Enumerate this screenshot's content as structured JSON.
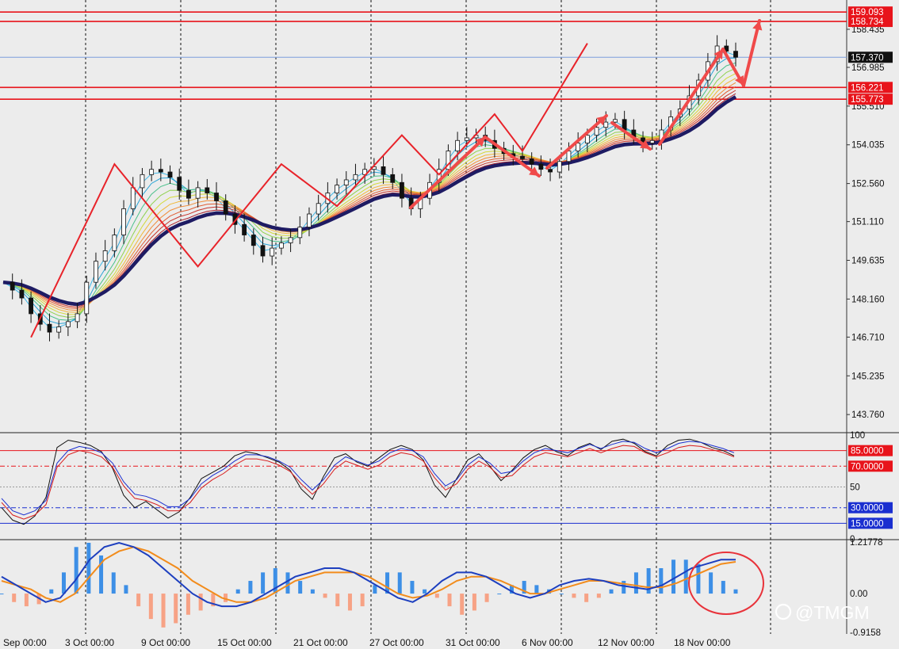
{
  "chart_data": {
    "type": "candlestick",
    "price_axis": {
      "ticks": [
        "158.435",
        "156.985",
        "155.510",
        "154.035",
        "152.560",
        "151.110",
        "149.635",
        "148.160",
        "146.710",
        "145.235",
        "143.760"
      ],
      "ylim": [
        143.1,
        159.4
      ]
    },
    "time_axis": {
      "labels": [
        "Sep 00:00",
        "3 Oct 00:00",
        "9 Oct 00:00",
        "15 Oct 00:00",
        "21 Oct 00:00",
        "27 Oct 00:00",
        "31 Oct 00:00",
        "6 Nov 00:00",
        "12 Nov 00:00",
        "18 Nov 00:00"
      ]
    },
    "price_series": [
      148.8,
      148.5,
      148.2,
      147.6,
      147.2,
      146.9,
      147.1,
      147.3,
      147.6,
      148.8,
      149.6,
      150.0,
      150.6,
      151.6,
      152.4,
      152.9,
      153.1,
      153.0,
      152.8,
      152.3,
      152.0,
      152.4,
      152.2,
      151.9,
      151.4,
      151.0,
      150.6,
      150.2,
      149.8,
      150.1,
      150.3,
      150.5,
      150.9,
      151.4,
      151.8,
      152.2,
      152.5,
      152.7,
      152.9,
      153.1,
      153.2,
      152.9,
      152.6,
      152.0,
      151.6,
      152.0,
      152.6,
      153.1,
      153.8,
      154.2,
      154.3,
      154.4,
      154.2,
      153.9,
      153.7,
      153.6,
      153.5,
      153.3,
      153.1,
      153.0,
      153.4,
      153.8,
      154.1,
      154.4,
      154.7,
      154.9,
      155.0,
      154.6,
      154.3,
      154.1,
      154.2,
      154.6,
      155.1,
      155.4,
      155.9,
      156.5,
      157.2,
      157.8,
      157.6,
      157.37
    ],
    "bid_line": 157.37,
    "horizontal_levels": [
      159.093,
      158.734,
      156.221,
      155.773
    ],
    "level_tags": [
      "159.093",
      "158.734",
      "157.370",
      "156.221",
      "155.773"
    ],
    "zigzag_points": [
      {
        "bar": 3,
        "price": 146.7
      },
      {
        "bar": 12,
        "price": 153.3
      },
      {
        "bar": 21,
        "price": 149.4
      },
      {
        "bar": 30,
        "price": 153.3
      },
      {
        "bar": 36,
        "price": 151.7
      },
      {
        "bar": 43,
        "price": 154.4
      },
      {
        "bar": 47,
        "price": 152.9
      },
      {
        "bar": 53,
        "price": 155.2
      },
      {
        "bar": 56,
        "price": 153.8
      },
      {
        "bar": 63,
        "price": 157.9
      }
    ],
    "stochastic": {
      "levels": [
        85,
        70,
        50,
        30,
        15
      ],
      "level_labels": [
        "85.0000",
        "70.0000",
        "30.0000",
        "15.0000"
      ],
      "scale_labels": [
        "100",
        "50",
        "0"
      ],
      "main": [
        30,
        18,
        14,
        22,
        40,
        88,
        95,
        93,
        90,
        84,
        68,
        42,
        30,
        36,
        28,
        20,
        26,
        40,
        58,
        64,
        70,
        80,
        84,
        82,
        78,
        74,
        66,
        48,
        38,
        60,
        78,
        82,
        74,
        70,
        78,
        86,
        90,
        86,
        76,
        52,
        40,
        58,
        76,
        82,
        70,
        56,
        66,
        78,
        86,
        90,
        84,
        80,
        88,
        92,
        86,
        94,
        96,
        92,
        84,
        80,
        90,
        95,
        96,
        93,
        88,
        85,
        80
      ],
      "signal": [
        38,
        26,
        22,
        26,
        36,
        72,
        84,
        88,
        86,
        82,
        72,
        54,
        42,
        40,
        36,
        30,
        30,
        38,
        52,
        60,
        66,
        74,
        80,
        80,
        78,
        74,
        68,
        56,
        46,
        56,
        70,
        78,
        74,
        70,
        74,
        82,
        86,
        84,
        78,
        62,
        50,
        56,
        70,
        78,
        72,
        62,
        64,
        74,
        82,
        86,
        84,
        82,
        86,
        90,
        86,
        90,
        93,
        92,
        86,
        82,
        86,
        91,
        93,
        92,
        89,
        86,
        82
      ]
    },
    "macd": {
      "scale_labels": [
        "1.21778",
        "0.00",
        "-0.9158"
      ],
      "histogram": [
        0.0,
        -0.2,
        -0.3,
        -0.25,
        0.1,
        0.5,
        1.1,
        1.2,
        0.9,
        0.5,
        0.2,
        -0.3,
        -0.6,
        -0.8,
        -0.7,
        -0.5,
        -0.4,
        -0.3,
        -0.2,
        0.1,
        0.3,
        0.5,
        0.6,
        0.5,
        0.3,
        0.1,
        -0.1,
        -0.3,
        -0.4,
        -0.3,
        0.2,
        0.5,
        0.5,
        0.3,
        0.1,
        -0.1,
        -0.3,
        -0.5,
        -0.4,
        -0.2,
        0.0,
        0.2,
        0.3,
        0.2,
        0.1,
        0.0,
        -0.1,
        -0.2,
        -0.1,
        0.1,
        0.3,
        0.5,
        0.6,
        0.6,
        0.8,
        0.8,
        0.7,
        0.5,
        0.3,
        0.1
      ],
      "main": [
        0.4,
        0.2,
        0.0,
        -0.2,
        -0.1,
        0.3,
        0.8,
        1.1,
        1.2,
        1.1,
        0.9,
        0.6,
        0.3,
        0.0,
        -0.2,
        -0.3,
        -0.3,
        -0.2,
        0.0,
        0.2,
        0.4,
        0.5,
        0.6,
        0.6,
        0.5,
        0.3,
        0.1,
        -0.1,
        -0.2,
        0.0,
        0.3,
        0.5,
        0.5,
        0.4,
        0.2,
        0.0,
        -0.1,
        0.0,
        0.2,
        0.3,
        0.35,
        0.3,
        0.2,
        0.15,
        0.1,
        0.2,
        0.4,
        0.6,
        0.7,
        0.8,
        0.8
      ],
      "signal": [
        0.3,
        0.2,
        0.1,
        -0.1,
        -0.2,
        0.0,
        0.4,
        0.8,
        1.0,
        1.1,
        1.0,
        0.8,
        0.6,
        0.3,
        0.1,
        -0.1,
        -0.2,
        -0.2,
        -0.1,
        0.1,
        0.3,
        0.4,
        0.5,
        0.5,
        0.5,
        0.4,
        0.2,
        0.0,
        -0.1,
        -0.05,
        0.1,
        0.3,
        0.4,
        0.4,
        0.3,
        0.15,
        0.0,
        0.0,
        0.1,
        0.2,
        0.3,
        0.3,
        0.25,
        0.2,
        0.15,
        0.15,
        0.25,
        0.4,
        0.55,
        0.7,
        0.75
      ]
    },
    "watermark": "@TMGM",
    "colors": {
      "background": "#ececec",
      "level_line": "#e8141b",
      "bid_line": "#7b9ddb",
      "zigzag": "#e8232a",
      "arrow": "#f04a4a",
      "slow_ma": "#1e1b63",
      "macd_main": "#1d3fbf",
      "macd_signal": "#f28c1c",
      "hist_pos": "#3d8fe6",
      "hist_neg": "#f7a285",
      "stoch_main": "#111111",
      "stoch_signal_a": "#d81b1b",
      "stoch_signal_b": "#1a2fd0",
      "tag_blue": "#1a2fd0"
    }
  }
}
